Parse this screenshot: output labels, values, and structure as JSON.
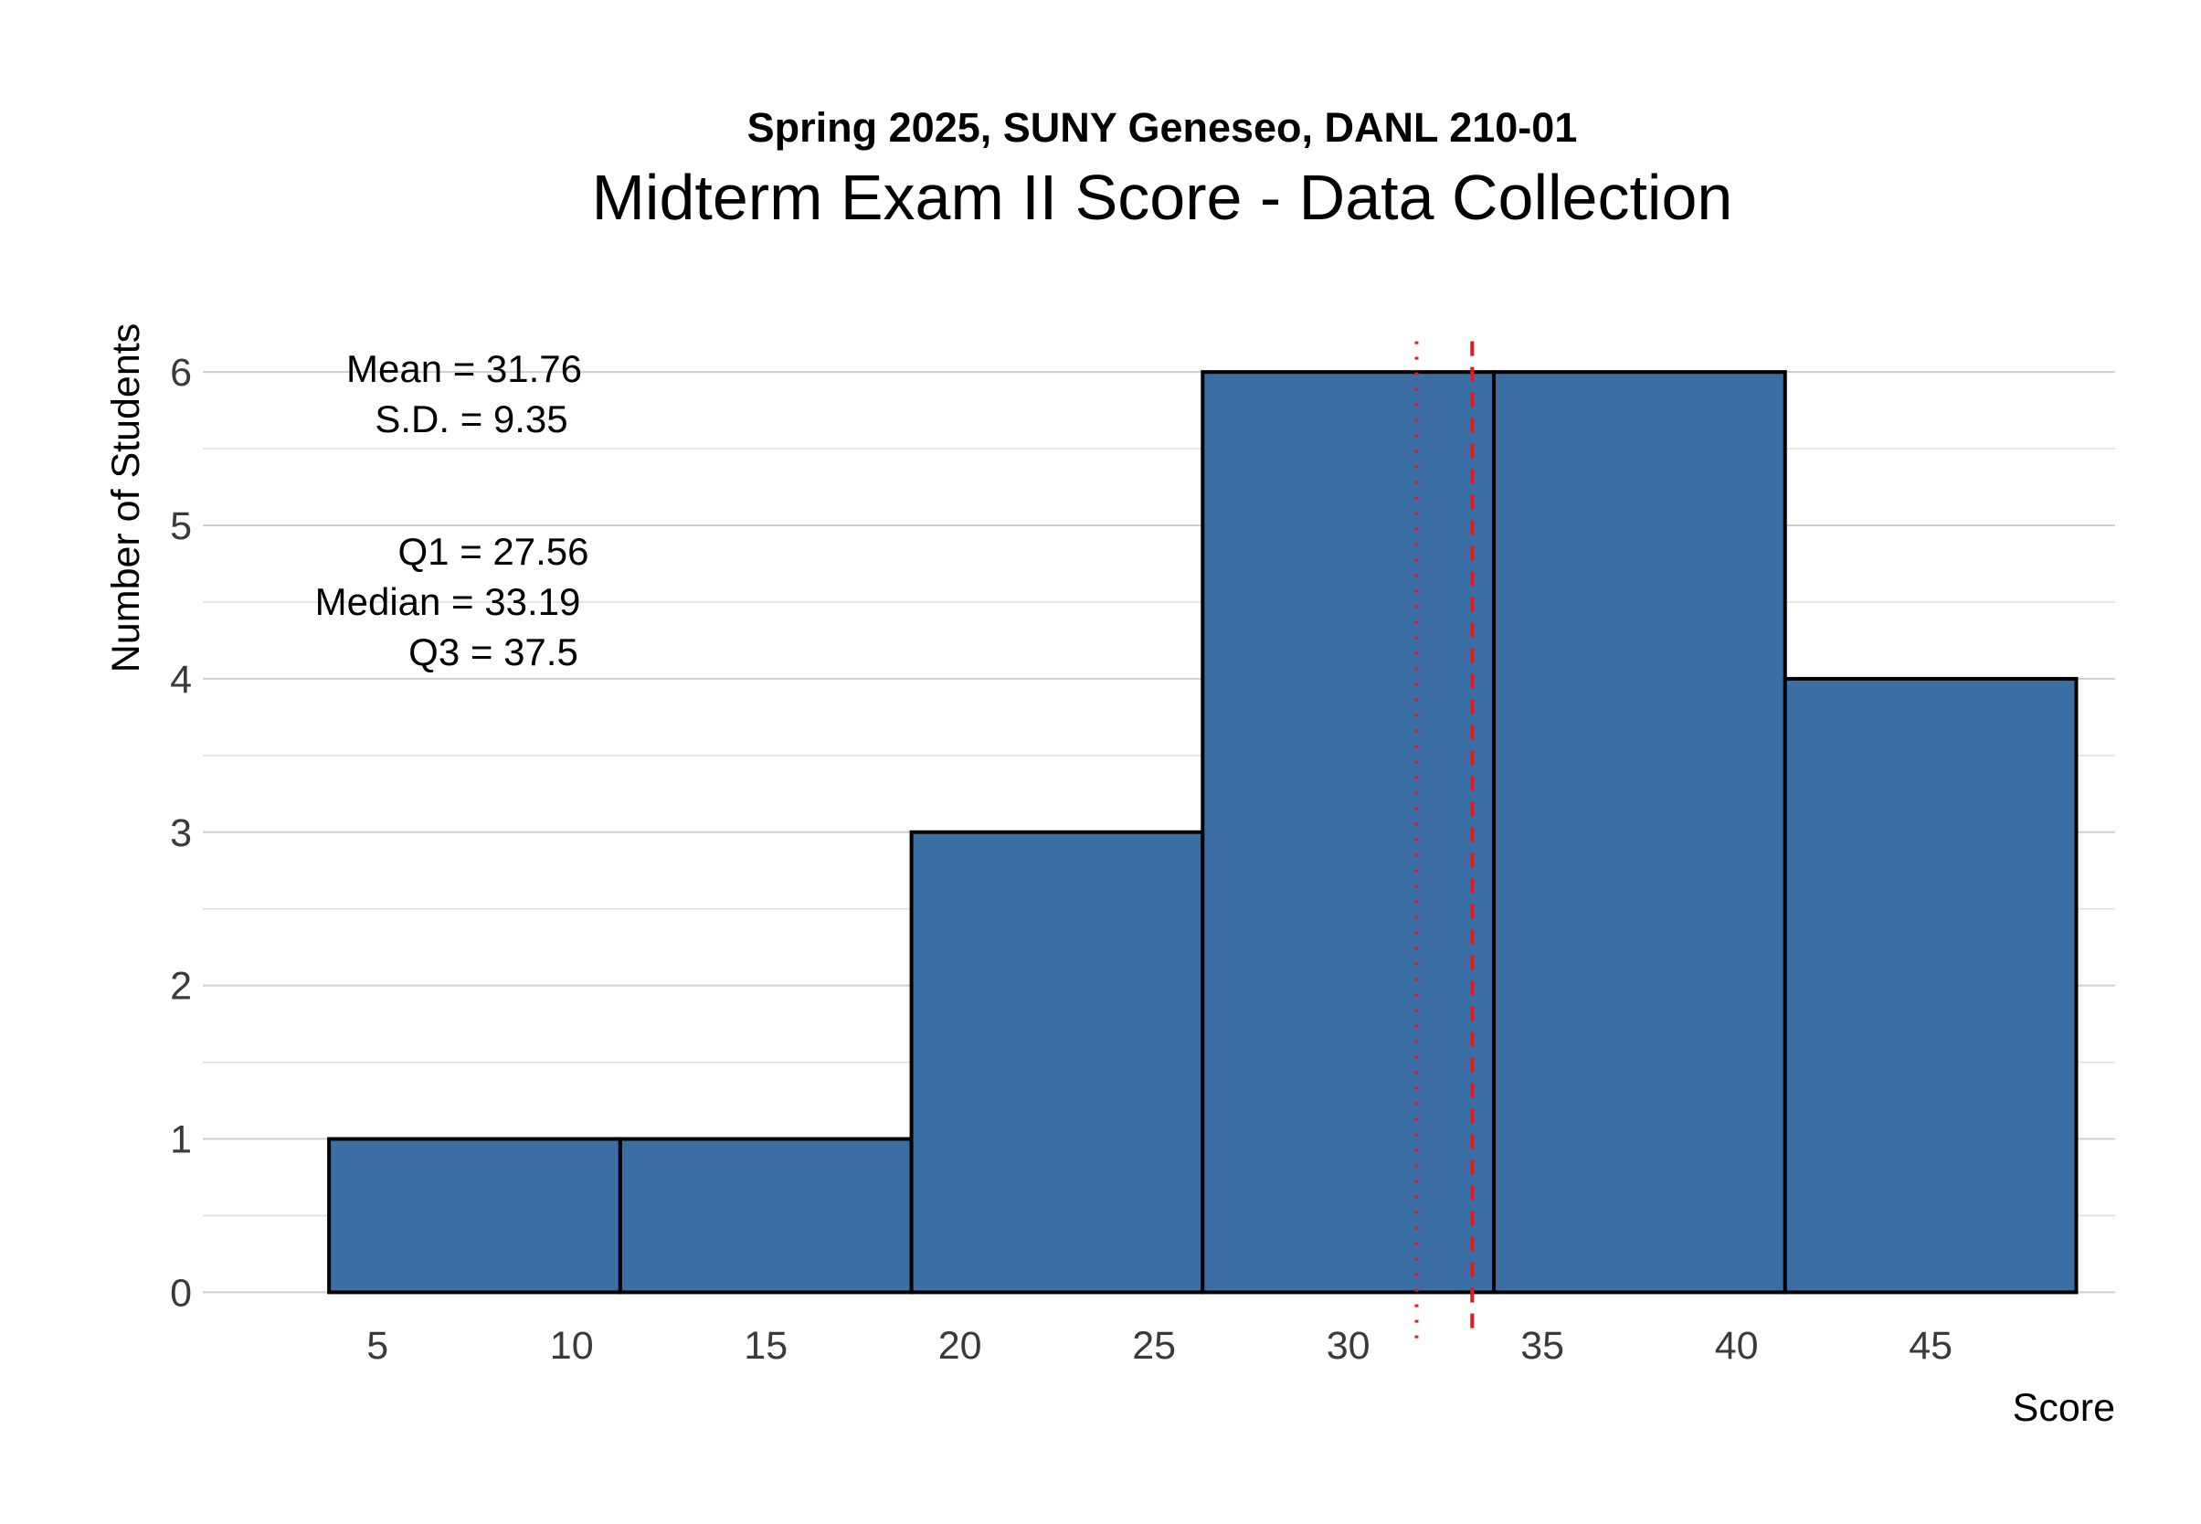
{
  "chart_data": {
    "type": "bar",
    "subtitle": "Spring 2025, SUNY Geneseo, DANL 210-01",
    "title": "Midterm Exam II Score - Data Collection",
    "xlabel": "Score",
    "ylabel": "Number of Students",
    "bins": [
      {
        "start": 3.75,
        "end": 11.25,
        "count": 1
      },
      {
        "start": 11.25,
        "end": 18.75,
        "count": 1
      },
      {
        "start": 18.75,
        "end": 26.25,
        "count": 3
      },
      {
        "start": 26.25,
        "end": 33.75,
        "count": 6
      },
      {
        "start": 33.75,
        "end": 41.25,
        "count": 6
      },
      {
        "start": 41.25,
        "end": 48.75,
        "count": 4
      }
    ],
    "xlim": [
      0.5,
      49.75
    ],
    "ylim": [
      -0.2,
      6.4
    ],
    "xticks": [
      5,
      10,
      15,
      20,
      25,
      30,
      35,
      40,
      45
    ],
    "yticks": [
      0,
      1,
      2,
      3,
      4,
      5,
      6
    ],
    "bar_color": "#3a6ea5",
    "vlines": [
      {
        "value": 31.76,
        "style": "dotted",
        "color": "#e41a1c"
      },
      {
        "value": 33.19,
        "style": "dashed",
        "color": "#e41a1c"
      }
    ],
    "annotations": [
      "Mean = 31.76",
      "S.D. = 9.35",
      "Q1 = 27.56",
      "Median = 33.19",
      "Q3 = 37.5"
    ],
    "grid": true
  }
}
